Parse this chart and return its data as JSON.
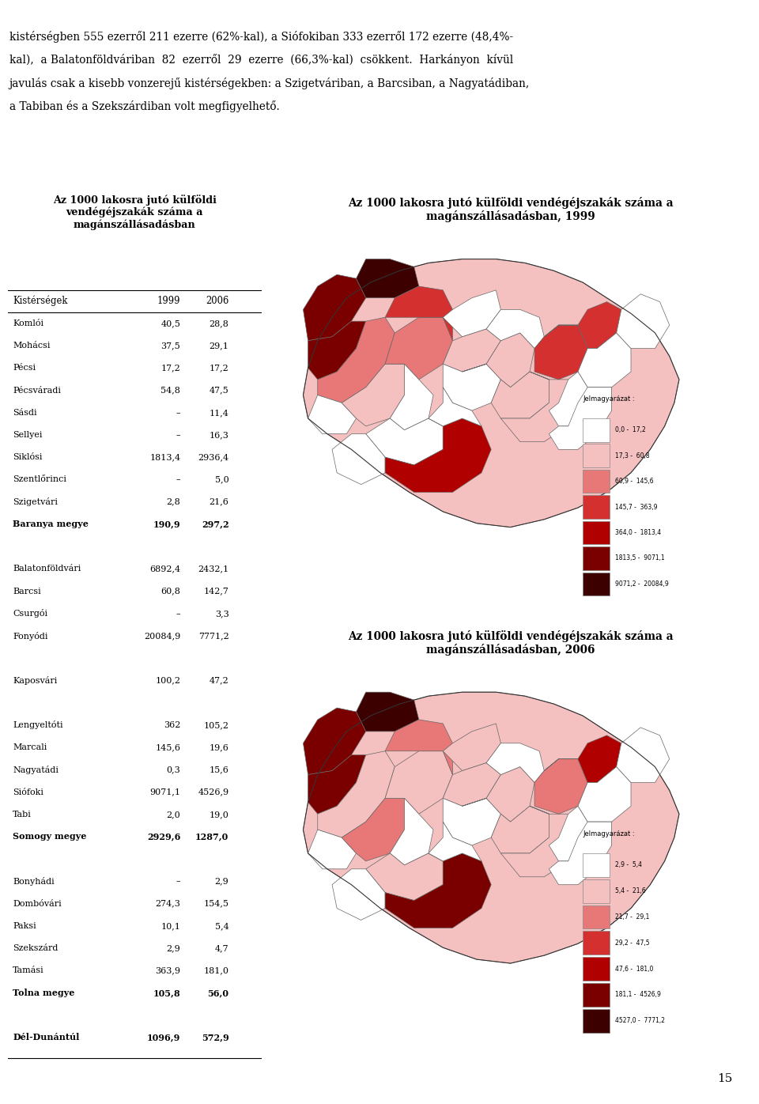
{
  "top_text_line1": "kistérségben 555 ezerről 211 ezerre (62%-kal), a Siófokiban 333 ezerről 172 ezerre (48,4%-",
  "top_text_line2": "kal),  a Balatonföldváriban  82  ezerről  29  ezerre  (66,3%-kal)  csökkent.  Harkányon  kívül",
  "top_text_line3": "javulás csak a kisebb vonzerejű kistérségekben: a Szigetváriban, a Barcsiban, a Nagyatádiban,",
  "top_text_line4": "a Tabiban és a Szekszárdiban volt megfigyelhető.",
  "table_title": "Az 1000 lakosra jutó külföldi\nvendégéjszakák száma a\nmagánszállásadásban",
  "col_headers": [
    "Kistérségek",
    "1999",
    "2006"
  ],
  "rows": [
    [
      "Komlói",
      "40,5",
      "28,8"
    ],
    [
      "Mohácsi",
      "37,5",
      "29,1"
    ],
    [
      "Pécsi",
      "17,2",
      "17,2"
    ],
    [
      "Pécsváradi",
      "54,8",
      "47,5"
    ],
    [
      "Sásdi",
      "–",
      "11,4"
    ],
    [
      "Sellyei",
      "–",
      "16,3"
    ],
    [
      "Siklósi",
      "1813,4",
      "2936,4"
    ],
    [
      "Szentlőrinci",
      "–",
      "5,0"
    ],
    [
      "Szigetvári",
      "2,8",
      "21,6"
    ],
    [
      "Baranya megye",
      "190,9",
      "297,2"
    ],
    [
      "",
      "",
      ""
    ],
    [
      "Balatonföldvári",
      "6892,4",
      "2432,1"
    ],
    [
      "Barcsi",
      "60,8",
      "142,7"
    ],
    [
      "Csurgói",
      "–",
      "3,3"
    ],
    [
      "Fonyódi",
      "20084,9",
      "7771,2"
    ],
    [
      "",
      "",
      ""
    ],
    [
      "Kaposvári",
      "100,2",
      "47,2"
    ],
    [
      "",
      "",
      ""
    ],
    [
      "Lengyeltóti",
      "362",
      "105,2"
    ],
    [
      "Marcali",
      "145,6",
      "19,6"
    ],
    [
      "Nagyatádi",
      "0,3",
      "15,6"
    ],
    [
      "Siófoki",
      "9071,1",
      "4526,9"
    ],
    [
      "Tabi",
      "2,0",
      "19,0"
    ],
    [
      "Somogy megye",
      "2929,6",
      "1287,0"
    ],
    [
      "",
      "",
      ""
    ],
    [
      "Bonyhádi",
      "–",
      "2,9"
    ],
    [
      "Dombóvári",
      "274,3",
      "154,5"
    ],
    [
      "Paksi",
      "10,1",
      "5,4"
    ],
    [
      "Szekszárd",
      "2,9",
      "4,7"
    ],
    [
      "Tamási",
      "363,9",
      "181,0"
    ],
    [
      "Tolna megye",
      "105,8",
      "56,0"
    ],
    [
      "",
      "",
      ""
    ],
    [
      "Dél-Dunántúl",
      "1096,9",
      "572,9"
    ]
  ],
  "bold_rows": [
    "Baranya megye",
    "Somogy megye",
    "Tolna megye",
    "Dél-Dunántúl"
  ],
  "map1_title": "Az 1000 lakosra jutó külföldi vendégéjszakák száma a\nmagánszállásadásban, 1999",
  "map2_title": "Az 1000 lakosra jutó külföldi vendégéjszakák száma a\nmagánszállásadásban, 2006",
  "legend1_entries": [
    [
      "0,0 -",
      "17,2",
      "#ffffff"
    ],
    [
      "17,3 -",
      "60,8",
      "#f5c0c0"
    ],
    [
      "60,9 -",
      "145,6",
      "#e87878"
    ],
    [
      "145,7 -",
      "363,9",
      "#d43030"
    ],
    [
      "364,0 -",
      "1813,4",
      "#b00000"
    ],
    [
      "1813,5 -",
      "9071,1",
      "#7a0000"
    ],
    [
      "9071,2 -",
      "20084,9",
      "#3d0000"
    ]
  ],
  "legend2_entries": [
    [
      "2,9 -",
      "5,4",
      "#ffffff"
    ],
    [
      "5,4 -",
      "21,6",
      "#f5c0c0"
    ],
    [
      "21,7 -",
      "29,1",
      "#e87878"
    ],
    [
      "29,2 -",
      "47,5",
      "#d43030"
    ],
    [
      "47,6 -",
      "181,0",
      "#b00000"
    ],
    [
      "181,1 -",
      "4526,9",
      "#7a0000"
    ],
    [
      "4527,0 -",
      "7771,2",
      "#3d0000"
    ]
  ],
  "page_number": "15",
  "bg_color": "#ffffff",
  "text_color": "#000000"
}
